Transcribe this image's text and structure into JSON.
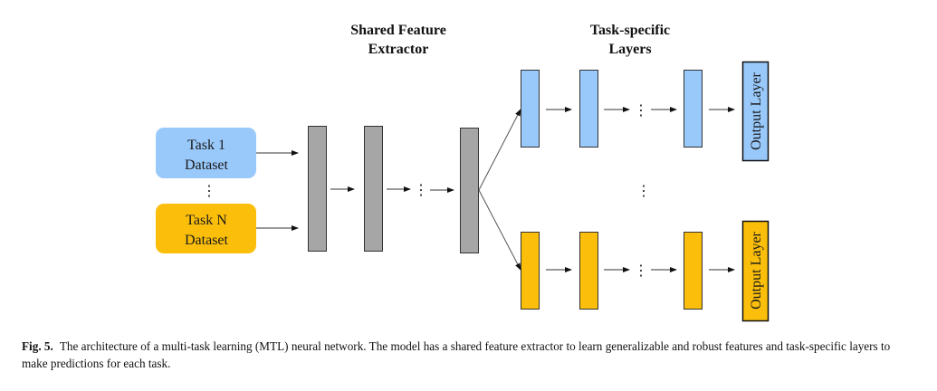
{
  "titles": {
    "shared": [
      "Shared Feature",
      "Extractor"
    ],
    "task": [
      "Task-specific",
      "Layers"
    ]
  },
  "datasets": [
    {
      "lines": [
        "Task 1",
        "Dataset"
      ],
      "color": "#99c9fb"
    },
    {
      "lines": [
        "Task N",
        "Dataset"
      ],
      "color": "#fbbf0b"
    }
  ],
  "output_label": "Output Layer",
  "ellipsis": "⋮",
  "colors": {
    "shared": "#a6a6a6",
    "task1": "#99c9fb",
    "taskN": "#fbbf0b",
    "stroke": "#333333"
  },
  "caption": {
    "label": "Fig. 5.",
    "text": "The architecture of a multi-task learning (MTL) neural network. The model has a shared feature extractor to learn generalizable and robust features and task-specific layers to make predictions for each task."
  }
}
